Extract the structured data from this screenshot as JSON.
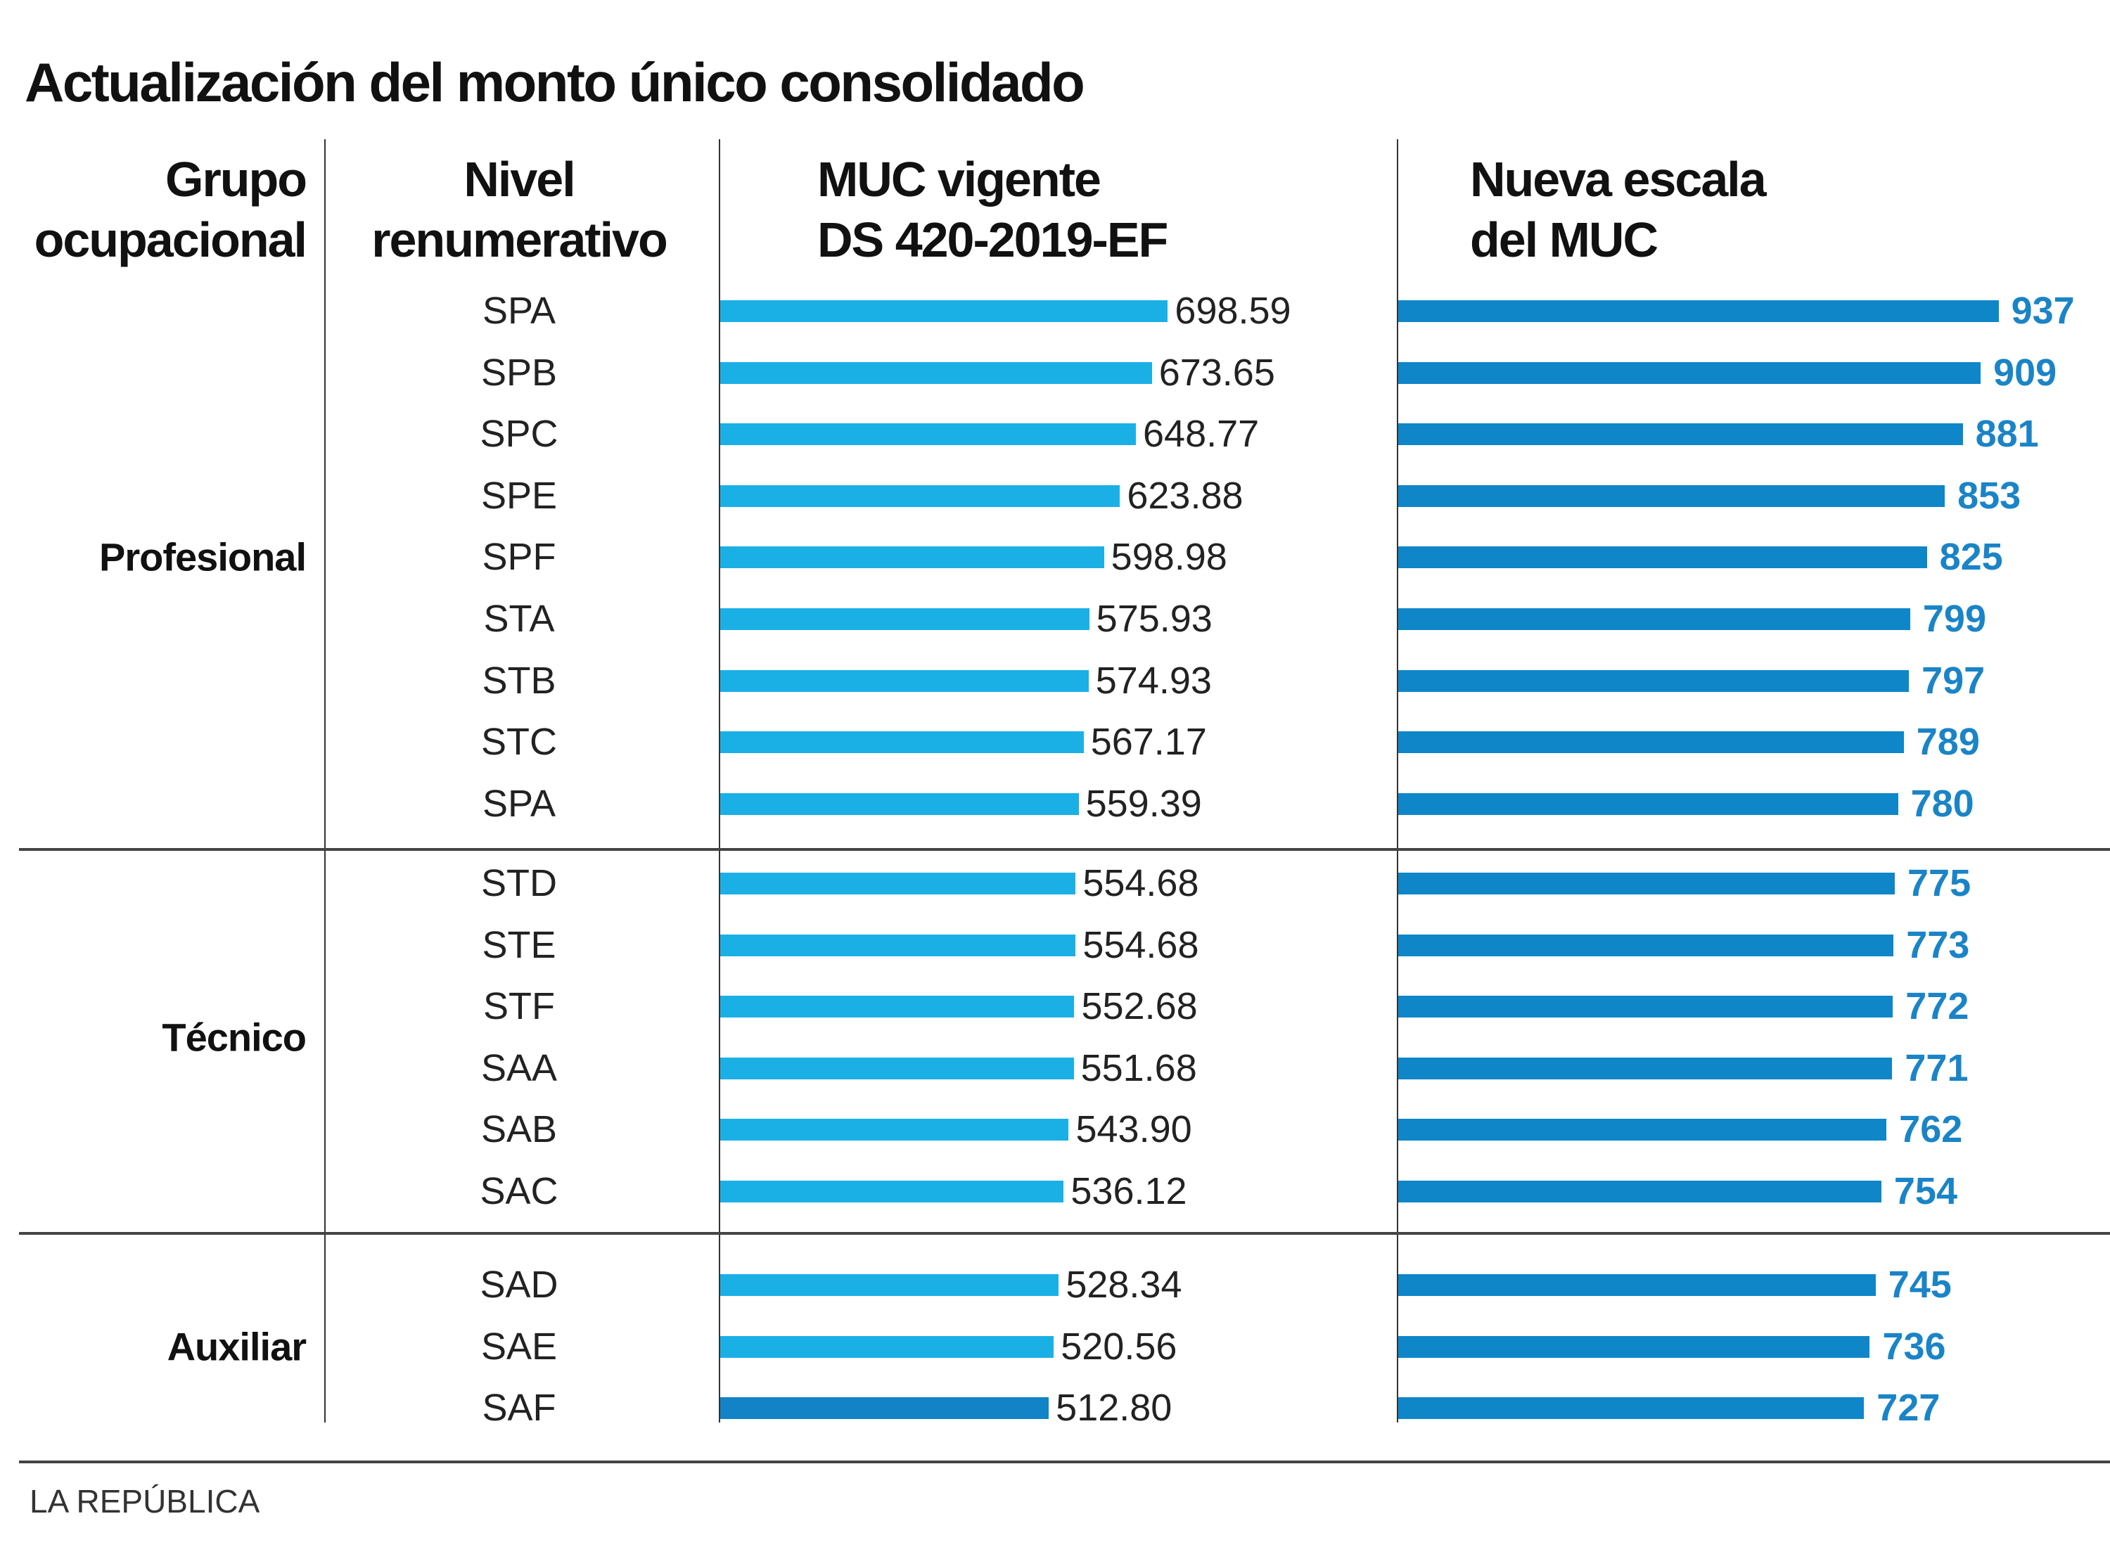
{
  "title": "Actualización del monto único consolidado",
  "headers": {
    "grupo": [
      "Grupo",
      "ocupacional"
    ],
    "nivel": [
      "Nivel",
      "renumerativo"
    ],
    "muc_vigente": [
      "MUC vigente",
      "DS 420-2019-EF"
    ],
    "nueva_escala": [
      "Nueva escala",
      "del MUC"
    ]
  },
  "footer": "LA REPÚBLICA",
  "colors": {
    "muc_vigente_bar": "#1ab0e6",
    "muc_vigente_bar_last": "#1183c6",
    "nueva_escala_bar": "#0f86c8",
    "nueva_escala_label": "#1a84c7"
  },
  "chart_data": {
    "type": "bar",
    "orientation": "horizontal",
    "title": "Actualización del monto único consolidado",
    "groups": [
      {
        "name": "Profesional",
        "categories": [
          "SPA",
          "SPB",
          "SPC",
          "SPE",
          "SPF",
          "STA",
          "STB",
          "STC",
          "SPA"
        ]
      },
      {
        "name": "Técnico",
        "categories": [
          "STD",
          "STE",
          "STF",
          "SAA",
          "SAB",
          "SAC"
        ]
      },
      {
        "name": "Auxiliar",
        "categories": [
          "SAD",
          "SAE",
          "SAF"
        ]
      }
    ],
    "series": [
      {
        "name": "MUC vigente DS 420-2019-EF",
        "labels": [
          "698.59",
          "673.65",
          "648.77",
          "623.88",
          "598.98",
          "575.93",
          "574.93",
          "567.17",
          "559.39",
          "554.68",
          "554.68",
          "552.68",
          "551.68",
          "543.90",
          "536.12",
          "528.34",
          "520.56",
          "512.80"
        ],
        "values": [
          698.59,
          673.65,
          648.77,
          623.88,
          598.98,
          575.93,
          574.93,
          567.17,
          559.39,
          554.68,
          554.68,
          552.68,
          551.68,
          543.9,
          536.12,
          528.34,
          520.56,
          512.8
        ]
      },
      {
        "name": "Nueva escala del MUC",
        "labels": [
          "937",
          "909",
          "881",
          "853",
          "825",
          "799",
          "797",
          "789",
          "780",
          "775",
          "773",
          "772",
          "771",
          "762",
          "754",
          "745",
          "736",
          "727"
        ],
        "values": [
          937,
          909,
          881,
          853,
          825,
          799,
          797,
          789,
          780,
          775,
          773,
          772,
          771,
          762,
          754,
          745,
          736,
          727
        ]
      }
    ],
    "xlim": [
      0,
      1000
    ],
    "grid": false,
    "legend": "none"
  }
}
